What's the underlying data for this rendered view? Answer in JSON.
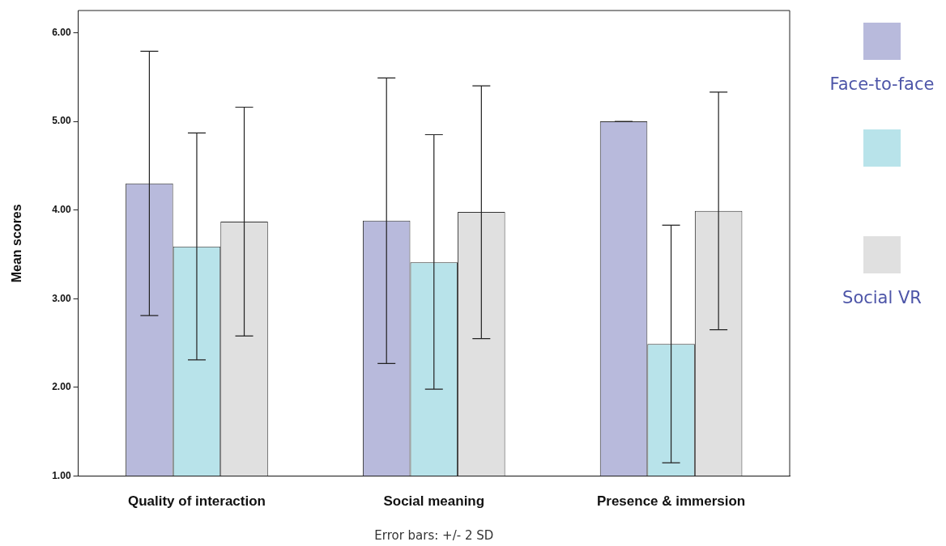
{
  "chart_data": {
    "type": "bar",
    "ylabel": "Mean scores",
    "annotations": [
      "Error bars: +/- 2 SD"
    ],
    "categories": [
      "Quality of interaction",
      "Social meaning",
      "Presence & immersion"
    ],
    "series": [
      {
        "name": "Face-to-face",
        "color": "#b8badc",
        "values": [
          4.3,
          3.88,
          5.0
        ],
        "errors": [
          [
            2.81,
            5.79
          ],
          [
            2.27,
            5.49
          ],
          [
            5.0,
            5.0
          ]
        ]
      },
      {
        "color": "#b8e3ea",
        "values": [
          3.59,
          3.41,
          2.49
        ],
        "errors": [
          [
            2.31,
            4.87
          ],
          [
            1.98,
            4.85
          ],
          [
            1.15,
            3.83
          ]
        ]
      },
      {
        "name": "Social VR",
        "color": "#e0e0e0",
        "values": [
          3.87,
          3.98,
          3.99
        ],
        "errors": [
          [
            2.58,
            5.16
          ],
          [
            2.55,
            5.4
          ],
          [
            2.65,
            5.33
          ]
        ]
      }
    ],
    "ylim": [
      1,
      6.25
    ],
    "yticks": [
      {
        "value": 1,
        "label": "1.00"
      },
      {
        "value": 2,
        "label": "2.00"
      },
      {
        "value": 3,
        "label": "3.00"
      },
      {
        "value": 4,
        "label": "4.00"
      },
      {
        "value": 5,
        "label": "5.00"
      },
      {
        "value": 6,
        "label": "6.00"
      }
    ],
    "legend": "right"
  }
}
